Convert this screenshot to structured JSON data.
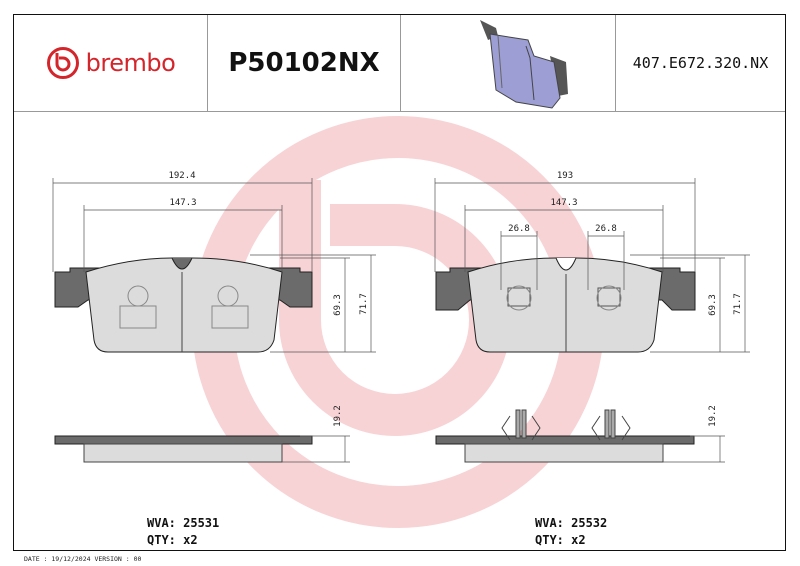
{
  "header": {
    "brand": "brembo",
    "part_number": "P50102NX",
    "reference": "407.E672.320.NX",
    "brand_color": "#d4252b"
  },
  "left_pad": {
    "dims": {
      "width_total": "192.4",
      "width_friction": "147.3",
      "height_friction": "69.3",
      "height_total": "71.7",
      "thickness": "19.2"
    },
    "wva_label": "WVA: 25531",
    "qty_label": "QTY: x2"
  },
  "right_pad": {
    "dims": {
      "width_total": "193",
      "width_friction": "147.3",
      "sensor_left": "26.8",
      "sensor_right": "26.8",
      "height_friction": "69.3",
      "height_total": "71.7",
      "thickness": "19.2"
    },
    "wva_label": "WVA: 25532",
    "qty_label": "QTY: x2"
  },
  "footer": {
    "date_line": "DATE : 19/12/2024 VERSION : 00"
  },
  "colors": {
    "plate": "#6b6b6b",
    "friction": "#dcdcdc",
    "watermark": "#f6c9cb",
    "pad_3d": "#9c9ed4"
  }
}
